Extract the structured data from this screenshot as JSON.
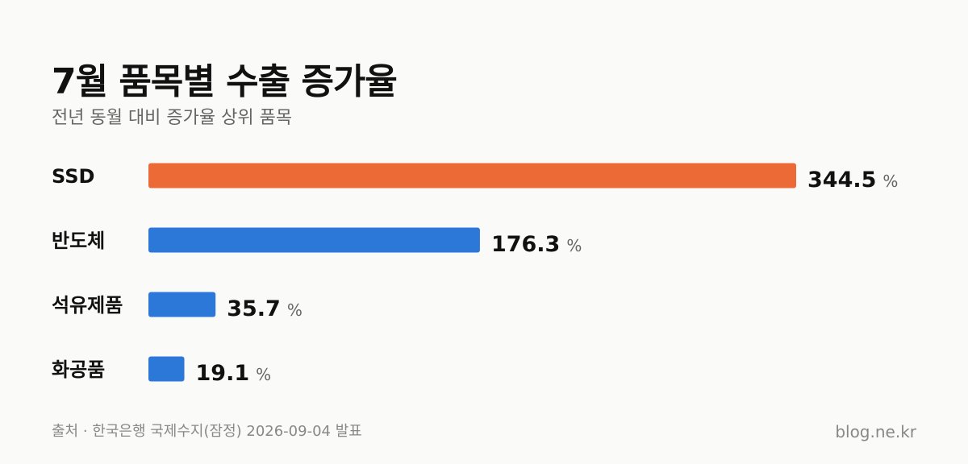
{
  "chart_data": {
    "type": "bar",
    "orientation": "horizontal",
    "title": "7월 품목별 수출 증가율",
    "subtitle": "전년 동월 대비 증가율 상위 품목",
    "categories": [
      "SSD",
      "반도체",
      "석유제품",
      "화공품"
    ],
    "values": [
      344.5,
      176.3,
      35.7,
      19.1
    ],
    "value_labels": [
      "344.5",
      "176.3",
      "35.7",
      "19.1"
    ],
    "unit": "%",
    "highlight_color": "#eb6a35",
    "bar_color": "#2c78d8",
    "grid": false,
    "legend": "none"
  },
  "footer": {
    "source": "출처 · 한국은행 국제수지(잠정) 2026-09-04 발표",
    "brand": "blog.ne.kr"
  }
}
